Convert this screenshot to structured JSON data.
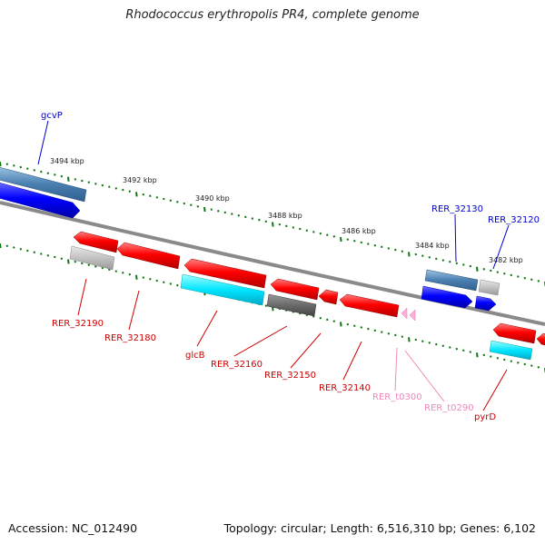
{
  "title": "Rhodococcus erythropolis PR4, complete genome",
  "footer": {
    "accession": "Accession: NC_012490",
    "topology": "Topology: circular; Length: 6,516,310 bp; Genes: 6,102"
  },
  "kbp_labels": [
    "3494 kbp",
    "3492 kbp",
    "3490 kbp",
    "3488 kbp",
    "3486 kbp",
    "3484 kbp",
    "3482 kbp"
  ],
  "colors": {
    "forward_label": "#0000cc",
    "reverse_label": "#cc0000",
    "trna_label": "#ee88bb",
    "backbone": "#888888",
    "tick": "#117711"
  },
  "genes_forward": [
    {
      "name": "gcvP",
      "color": "blue"
    },
    {
      "name": "RER_32130",
      "color": "blue"
    },
    {
      "name": "RER_32120",
      "color": "blue"
    }
  ],
  "genes_reverse": [
    {
      "name": "RER_32190"
    },
    {
      "name": "RER_32180"
    },
    {
      "name": "glcB"
    },
    {
      "name": "RER_32160"
    },
    {
      "name": "RER_32150"
    },
    {
      "name": "RER_32140"
    },
    {
      "name": "RER_t0300"
    },
    {
      "name": "RER_t0290"
    },
    {
      "name": "pyrD"
    }
  ]
}
